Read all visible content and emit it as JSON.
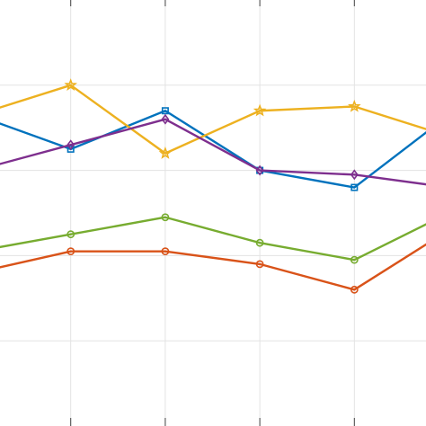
{
  "chart_data": {
    "type": "line",
    "title": "",
    "xlabel": "",
    "ylabel": "",
    "x": [
      0,
      1,
      2,
      3,
      4,
      5
    ],
    "xlim": [
      0,
      4.5
    ],
    "ylim": [
      0,
      10
    ],
    "grid": true,
    "legend": "none",
    "series": [
      {
        "color": "#0072BD",
        "marker": "square",
        "values": [
          7.3,
          6.5,
          7.4,
          6.0,
          5.6,
          7.3
        ]
      },
      {
        "color": "#D95319",
        "marker": "circle",
        "values": [
          3.6,
          4.1,
          4.1,
          3.8,
          3.2,
          4.6
        ]
      },
      {
        "color": "#EDB120",
        "marker": "star",
        "values": [
          7.3,
          8.0,
          6.4,
          7.4,
          7.5,
          6.8
        ]
      },
      {
        "color": "#7E2F8E",
        "marker": "diamond",
        "values": [
          6.0,
          6.6,
          7.2,
          6.0,
          5.9,
          5.6
        ]
      },
      {
        "color": "#77AC30",
        "marker": "circle",
        "values": [
          4.1,
          4.5,
          4.9,
          4.3,
          3.9,
          5.0
        ]
      }
    ]
  }
}
